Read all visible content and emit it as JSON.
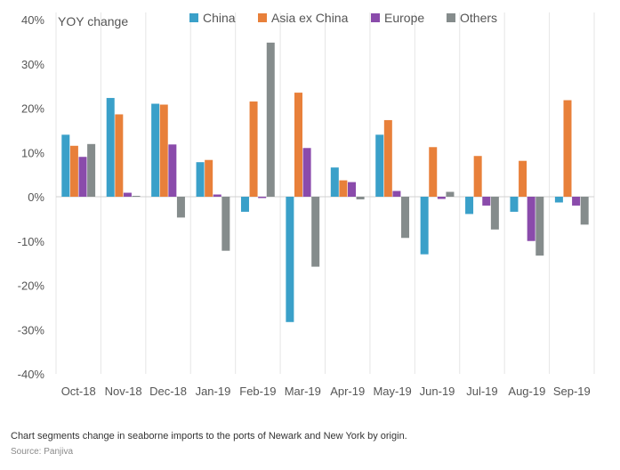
{
  "chart_data": {
    "type": "bar",
    "ylabel": "YOY change",
    "categories": [
      "Oct-18",
      "Nov-18",
      "Dec-18",
      "Jan-19",
      "Feb-19",
      "Mar-19",
      "Apr-19",
      "May-19",
      "Jun-19",
      "Jul-19",
      "Aug-19",
      "Sep-19"
    ],
    "ylim": [
      -40,
      40
    ],
    "yticks": [
      40,
      30,
      20,
      10,
      0,
      -10,
      -20,
      -30,
      -40
    ],
    "ytick_labels": [
      "40%",
      "30%",
      "20%",
      "10%",
      "0%",
      "-10%",
      "-20%",
      "-30%",
      "-40%"
    ],
    "gridlines": "vertical separators",
    "legend_position": "top",
    "series": [
      {
        "name": "China",
        "color": "#3aa0c9",
        "values": [
          14,
          22.3,
          21,
          7.8,
          -3.4,
          -28.3,
          6.6,
          14,
          -13,
          -3.9,
          -3.4,
          -1.3
        ]
      },
      {
        "name": "Asia ex China",
        "color": "#e8803a",
        "values": [
          11.5,
          18.6,
          20.8,
          8.3,
          21.5,
          23.5,
          3.7,
          17.3,
          11.2,
          9.2,
          8.1,
          21.8
        ]
      },
      {
        "name": "Europe",
        "color": "#8a4bab",
        "values": [
          9,
          0.9,
          11.8,
          0.5,
          -0.3,
          11,
          3.3,
          1.3,
          -0.5,
          -2,
          -10,
          -2
        ]
      },
      {
        "name": "Others",
        "color": "#858c8c",
        "values": [
          11.9,
          0.2,
          -4.7,
          -12.2,
          34.8,
          -15.8,
          -0.6,
          -9.3,
          1.1,
          -7.4,
          -13.3,
          -6.3
        ]
      }
    ]
  },
  "caption": "Chart segments change in seaborne imports to the ports of Newark and New York by origin.",
  "source": "Source: Panjiva"
}
